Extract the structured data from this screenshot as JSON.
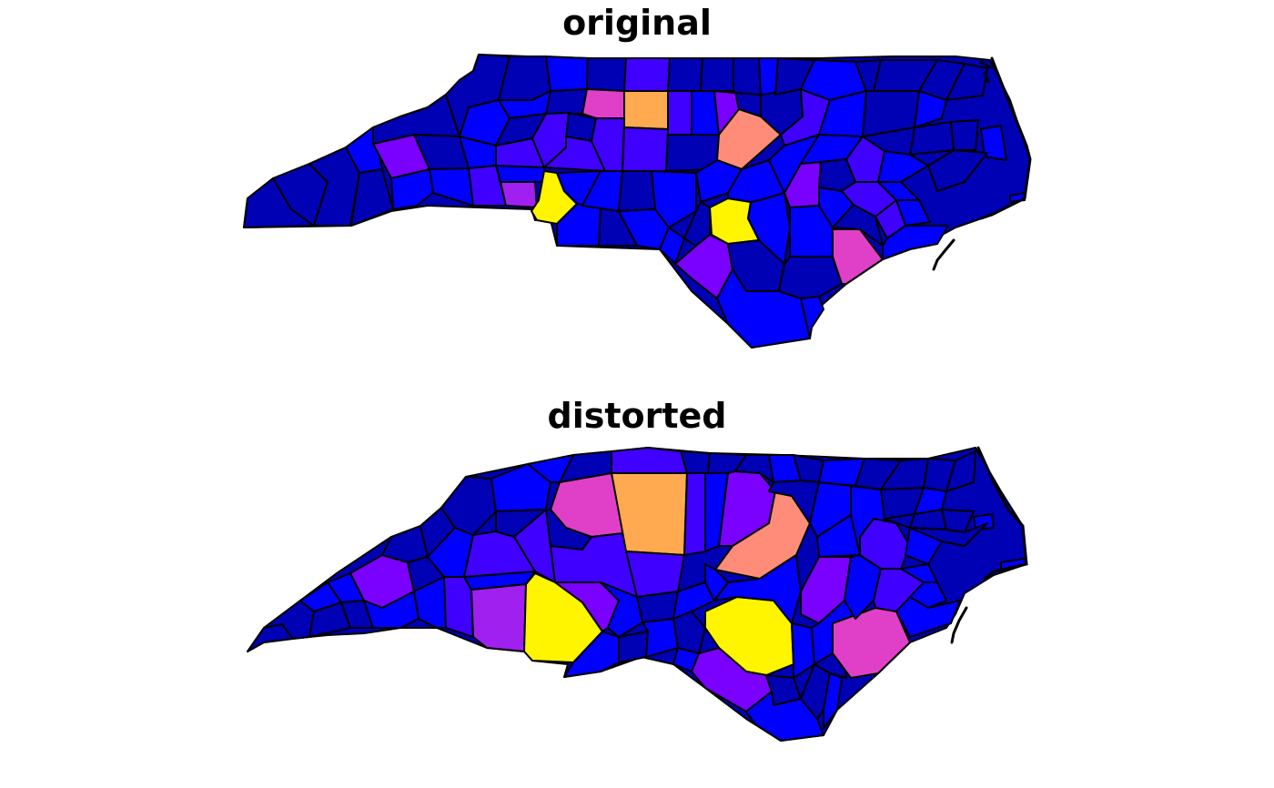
{
  "panels": [
    {
      "title": "original"
    },
    {
      "title": "distorted"
    }
  ],
  "colors": {
    "dark_blue": "#0000B4",
    "blue": "#0000FF",
    "indigo": "#4000FF",
    "violet": "#7A00FF",
    "purple": "#A020F0",
    "magenta": "#E040C8",
    "salmon": "#FF8C78",
    "orange": "#FFAA50",
    "yellow": "#FFF500",
    "outline": "#000000"
  },
  "legend": "none"
}
